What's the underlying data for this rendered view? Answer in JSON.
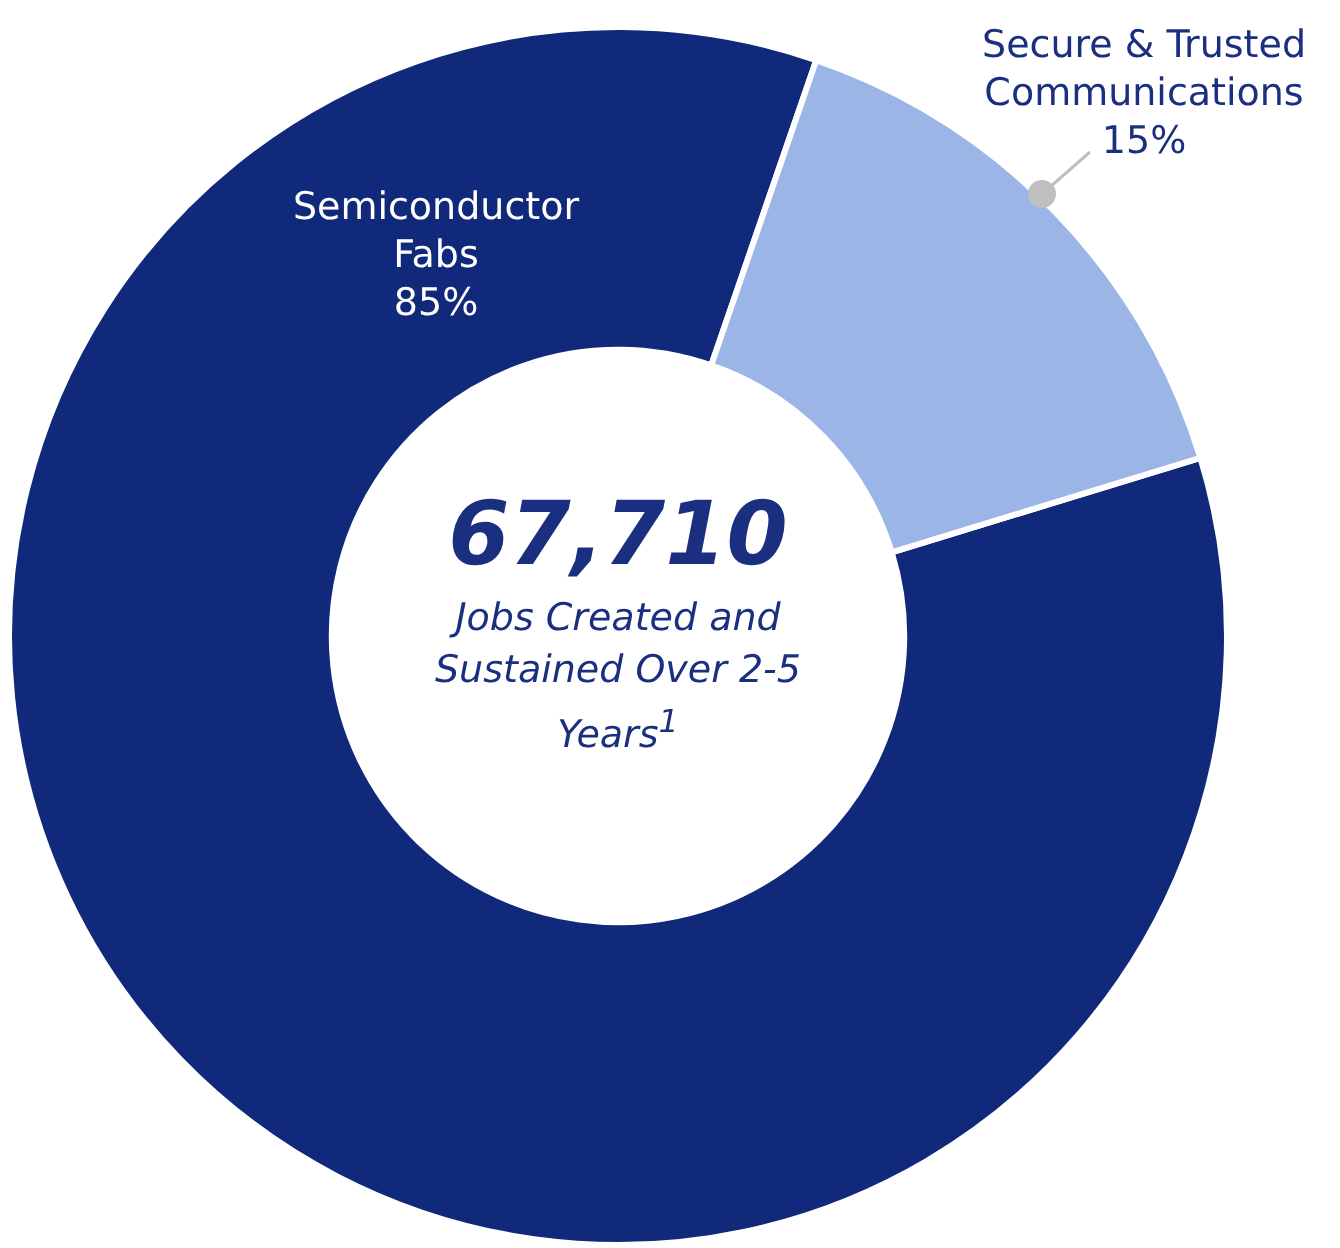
{
  "chart_data": {
    "type": "donut",
    "title": "67,710",
    "subtitle": "Jobs Created and Sustained Over 2-5 Years$^{1}$",
    "categories": [
      "Semiconductor Fabs",
      "Secure & Trusted Communications"
    ],
    "values": [
      85,
      15
    ],
    "colors": [
      "#10297a",
      "#9bb6e6"
    ],
    "value_labels": [
      "85%",
      "15%"
    ],
    "legend": false
  }
}
